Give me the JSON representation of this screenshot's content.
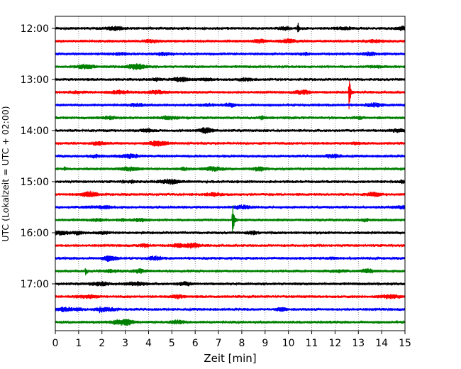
{
  "chart_data": {
    "type": "line",
    "title": "",
    "xlabel": "Zeit  [min]",
    "ylabel": "UTC (Lokalzeit = UTC + 02:00)",
    "xlim": [
      0,
      15
    ],
    "x_ticks": [
      "0",
      "1",
      "2",
      "3",
      "4",
      "5",
      "6",
      "7",
      "8",
      "9",
      "10",
      "11",
      "12",
      "13",
      "14",
      "15"
    ],
    "y_ticks": [
      "12:00",
      "13:00",
      "14:00",
      "15:00",
      "16:00",
      "17:00"
    ],
    "grid": "vertical dotted",
    "trace_color_cycle": [
      "#000000",
      "#ff0000",
      "#0000ff",
      "#008000"
    ],
    "trace_start_times": [
      "12:00",
      "12:15",
      "12:30",
      "12:45",
      "13:00",
      "13:15",
      "13:30",
      "13:45",
      "14:00",
      "14:15",
      "14:30",
      "14:45",
      "15:00",
      "15:15",
      "15:30",
      "15:45",
      "16:00",
      "16:15",
      "16:30",
      "16:45",
      "17:00",
      "17:15",
      "17:30",
      "17:45"
    ],
    "events": [
      {
        "trace": "12:00",
        "minute": 10.4,
        "amplitude": 0.55
      },
      {
        "trace": "13:15",
        "minute": 12.6,
        "amplitude": 1.7
      },
      {
        "trace": "15:45",
        "minute": 7.6,
        "amplitude": 1.7
      },
      {
        "trace": "16:45",
        "minute": 1.3,
        "amplitude": 0.3
      },
      {
        "trace": "17:30",
        "minute": 1.9,
        "amplitude": 0.15
      },
      {
        "trace": "14:45",
        "minute": 0.4,
        "amplitude": 0.2
      },
      {
        "trace": "15:00",
        "minute": 2.9,
        "amplitude": 0.15
      }
    ]
  }
}
